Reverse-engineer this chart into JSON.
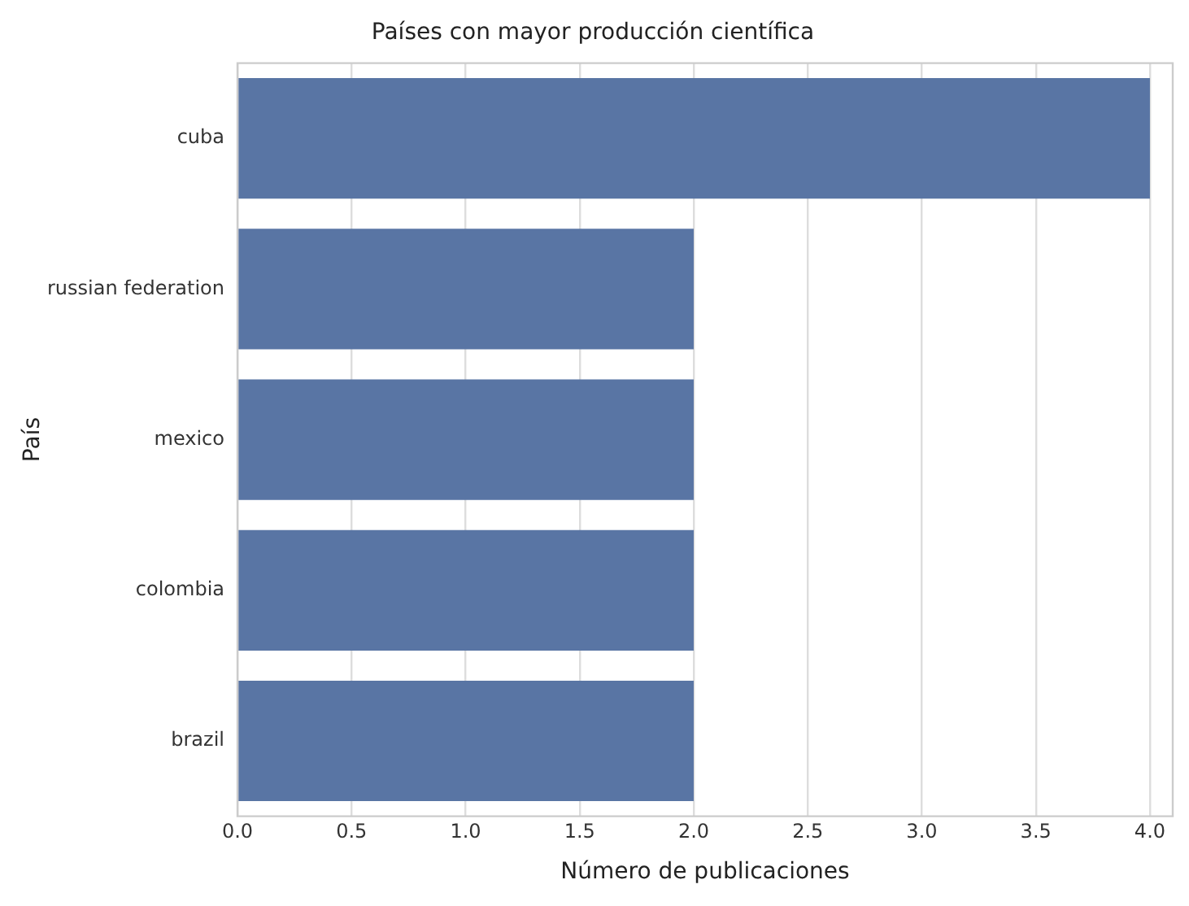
{
  "chart_data": {
    "type": "bar",
    "orientation": "horizontal",
    "title": "Países con mayor producción científica",
    "xlabel": "Número de publicaciones",
    "ylabel": "País",
    "categories": [
      "cuba",
      "russian federation",
      "mexico",
      "colombia",
      "brazil"
    ],
    "values": [
      4,
      2,
      2,
      2,
      2
    ],
    "color": "#5975a4",
    "xlim": [
      0,
      4.1
    ],
    "xticks": [
      {
        "value": 0,
        "label": "0.0"
      },
      0.5,
      {
        "value": 1,
        "label": "1.0"
      },
      1.5,
      {
        "value": 2,
        "label": "2.0"
      },
      2.5,
      {
        "value": 3,
        "label": "3.0"
      },
      3.5,
      {
        "value": 4,
        "label": "4.0"
      }
    ],
    "grid": "x"
  }
}
